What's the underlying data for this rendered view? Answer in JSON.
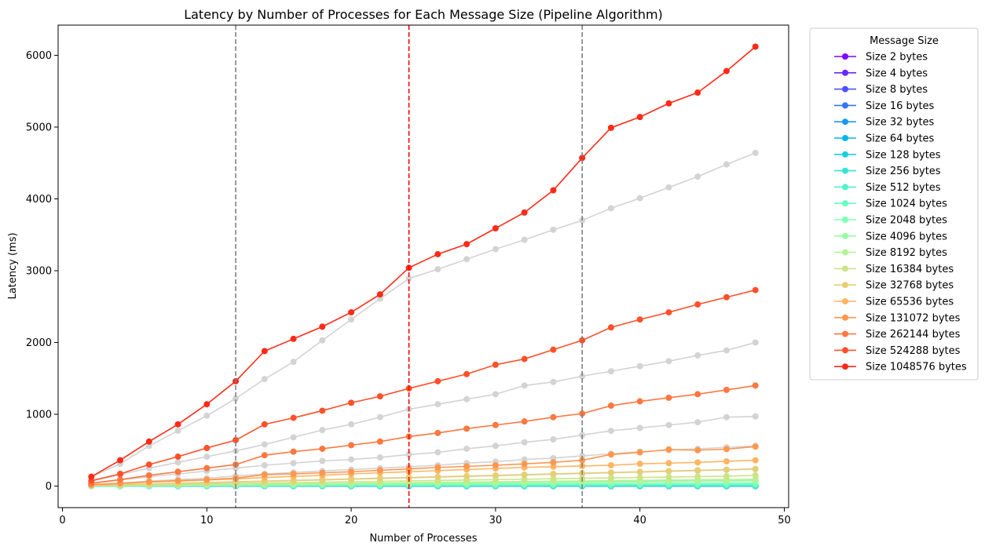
{
  "chart_data": {
    "type": "line",
    "title": "Latency by Number of Processes for Each Message Size (Pipeline Algorithm)",
    "xlabel": "Number of Processes",
    "ylabel": "Latency (ms)",
    "xlim": [
      -0.3,
      50.3
    ],
    "ylim": [
      -300,
      6420
    ],
    "xticks": [
      0,
      10,
      20,
      30,
      40,
      50
    ],
    "yticks": [
      0,
      1000,
      2000,
      3000,
      4000,
      5000,
      6000
    ],
    "grid": false,
    "x": [
      2,
      4,
      6,
      8,
      10,
      12,
      14,
      16,
      18,
      20,
      22,
      24,
      26,
      28,
      30,
      32,
      34,
      36,
      38,
      40,
      42,
      44,
      46,
      48
    ],
    "vlines": [
      {
        "x": 12,
        "color": "#808080"
      },
      {
        "x": 24,
        "color": "#ff0000"
      },
      {
        "x": 36,
        "color": "#808080"
      }
    ],
    "legend": {
      "title": "Message Size",
      "placement": "outside right"
    },
    "reference_color": "#d3d3d3",
    "reference_series": [
      {
        "values": [
          130,
          310,
          560,
          770,
          980,
          1220,
          1490,
          1730,
          2030,
          2320,
          2610,
          2890,
          3020,
          3160,
          3300,
          3430,
          3570,
          3700,
          3870,
          4010,
          4160,
          4310,
          4480,
          4640
        ]
      },
      {
        "values": [
          70,
          160,
          250,
          330,
          410,
          490,
          580,
          680,
          780,
          860,
          960,
          1070,
          1140,
          1210,
          1280,
          1400,
          1450,
          1530,
          1600,
          1670,
          1740,
          1820,
          1890,
          2000
        ]
      },
      {
        "values": [
          35,
          85,
          130,
          170,
          210,
          250,
          290,
          320,
          350,
          370,
          400,
          440,
          470,
          520,
          560,
          610,
          650,
          710,
          770,
          810,
          850,
          890,
          960,
          970
        ]
      },
      {
        "values": [
          15,
          40,
          70,
          90,
          110,
          140,
          170,
          190,
          210,
          230,
          250,
          270,
          290,
          320,
          340,
          370,
          390,
          420,
          450,
          480,
          500,
          520,
          540,
          560
        ]
      },
      {
        "values": [
          5,
          15,
          25,
          35,
          45,
          55,
          65,
          75,
          85,
          95,
          105,
          115,
          125,
          135,
          145,
          155,
          165,
          175,
          185,
          195,
          205,
          215,
          225,
          235
        ]
      },
      {
        "values": [
          0,
          5,
          8,
          12,
          15,
          18,
          22,
          25,
          28,
          32,
          35,
          38,
          42,
          45,
          48,
          52,
          55,
          58,
          62,
          65,
          68,
          72,
          75,
          78
        ]
      },
      {
        "values": [
          0,
          0,
          0,
          0,
          0,
          0,
          0,
          0,
          0,
          0,
          0,
          0,
          0,
          0,
          0,
          0,
          0,
          0,
          0,
          0,
          0,
          0,
          0,
          0
        ]
      }
    ],
    "series": [
      {
        "name": "Size 2 bytes",
        "color": "#8000ff",
        "values": [
          1,
          1,
          1,
          1,
          1,
          1,
          1,
          1,
          1,
          1,
          1,
          1,
          1,
          1,
          1,
          1,
          1,
          1,
          1,
          1,
          1,
          1,
          1,
          1
        ]
      },
      {
        "name": "Size 4 bytes",
        "color": "#6629fe",
        "values": [
          1,
          1,
          1,
          1,
          1,
          1,
          1,
          1,
          1,
          1,
          1,
          1,
          1,
          1,
          1,
          1,
          1,
          1,
          1,
          1,
          1,
          1,
          1,
          1
        ]
      },
      {
        "name": "Size 8 bytes",
        "color": "#4c50fc",
        "values": [
          1,
          1,
          1,
          1,
          1,
          1,
          1,
          1,
          1,
          1,
          1,
          1,
          1,
          1,
          1,
          1,
          1,
          1,
          1,
          1,
          1,
          1,
          1,
          1
        ]
      },
      {
        "name": "Size 16 bytes",
        "color": "#3176f8",
        "values": [
          1,
          1,
          1,
          1,
          1,
          1,
          1,
          1,
          1,
          1,
          1,
          1,
          1,
          1,
          1,
          1,
          1,
          1,
          1,
          1,
          1,
          1,
          1,
          1
        ]
      },
      {
        "name": "Size 32 bytes",
        "color": "#1996f3",
        "values": [
          1,
          1,
          1,
          1,
          1,
          1,
          1,
          1,
          1,
          1,
          1,
          1,
          1,
          1,
          1,
          1,
          1,
          1,
          1,
          1,
          1,
          1,
          1,
          1
        ]
      },
      {
        "name": "Size 64 bytes",
        "color": "#00b5eb",
        "values": [
          1,
          1,
          1,
          1,
          1,
          1,
          1,
          1,
          1,
          1,
          1,
          1,
          1,
          1,
          1,
          1,
          1,
          1,
          1,
          1,
          1,
          1,
          1,
          1
        ]
      },
      {
        "name": "Size 128 bytes",
        "color": "#1acee3",
        "values": [
          1,
          1,
          1,
          2,
          2,
          2,
          2,
          2,
          2,
          2,
          2,
          2,
          2,
          2,
          2,
          2,
          2,
          2,
          2,
          2,
          2,
          2,
          2,
          2
        ]
      },
      {
        "name": "Size 256 bytes",
        "color": "#33e4d6",
        "values": [
          1,
          1,
          2,
          2,
          2,
          3,
          3,
          3,
          3,
          4,
          4,
          4,
          4,
          4,
          5,
          5,
          5,
          5,
          5,
          6,
          6,
          6,
          6,
          6
        ]
      },
      {
        "name": "Size 512 bytes",
        "color": "#4df3ce",
        "values": [
          2,
          2,
          3,
          3,
          4,
          4,
          5,
          5,
          6,
          6,
          6,
          7,
          7,
          8,
          8,
          8,
          9,
          9,
          10,
          10,
          10,
          11,
          11,
          12
        ]
      },
      {
        "name": "Size 1024 bytes",
        "color": "#66fcc2",
        "values": [
          2,
          3,
          4,
          5,
          6,
          7,
          8,
          9,
          10,
          11,
          12,
          13,
          14,
          15,
          15,
          16,
          17,
          18,
          19,
          20,
          21,
          22,
          23,
          24
        ]
      },
      {
        "name": "Size 2048 bytes",
        "color": "#80ffb4",
        "values": [
          3,
          4,
          6,
          8,
          10,
          12,
          13,
          15,
          17,
          19,
          20,
          22,
          24,
          26,
          27,
          29,
          31,
          33,
          35,
          36,
          38,
          40,
          42,
          44
        ]
      },
      {
        "name": "Size 4096 bytes",
        "color": "#99fca4",
        "values": [
          3,
          6,
          9,
          12,
          15,
          18,
          21,
          24,
          27,
          30,
          33,
          36,
          39,
          42,
          45,
          48,
          51,
          54,
          57,
          60,
          63,
          66,
          69,
          72
        ]
      },
      {
        "name": "Size 8192 bytes",
        "color": "#b3f396",
        "values": [
          4,
          8,
          12,
          16,
          20,
          24,
          28,
          32,
          36,
          40,
          44,
          48,
          52,
          56,
          60,
          64,
          68,
          72,
          76,
          80,
          84,
          88,
          92,
          96
        ]
      },
      {
        "name": "Size 16384 bytes",
        "color": "#cce485",
        "values": [
          6,
          12,
          18,
          24,
          30,
          36,
          42,
          48,
          54,
          60,
          66,
          72,
          78,
          84,
          90,
          96,
          102,
          108,
          114,
          120,
          126,
          132,
          138,
          150
        ]
      },
      {
        "name": "Size 32768 bytes",
        "color": "#e6ce73",
        "values": [
          10,
          20,
          30,
          40,
          50,
          60,
          70,
          80,
          90,
          100,
          110,
          120,
          130,
          140,
          150,
          160,
          170,
          180,
          190,
          200,
          210,
          220,
          230,
          240
        ]
      },
      {
        "name": "Size 65536 bytes",
        "color": "#ffb462",
        "values": [
          15,
          35,
          55,
          70,
          85,
          100,
          120,
          135,
          150,
          170,
          185,
          200,
          215,
          230,
          245,
          260,
          270,
          280,
          290,
          310,
          320,
          330,
          345,
          360
        ]
      },
      {
        "name": "Size 131072 bytes",
        "color": "#ff964f",
        "values": [
          20,
          40,
          60,
          75,
          90,
          110,
          160,
          170,
          185,
          200,
          220,
          240,
          260,
          275,
          290,
          310,
          330,
          360,
          440,
          470,
          510,
          500,
          515,
          550
        ]
      },
      {
        "name": "Size 262144 bytes",
        "color": "#ff7640",
        "values": [
          40,
          90,
          150,
          200,
          250,
          300,
          430,
          480,
          520,
          570,
          620,
          690,
          740,
          800,
          850,
          900,
          960,
          1010,
          1120,
          1180,
          1230,
          1280,
          1340,
          1400
        ]
      },
      {
        "name": "Size 524288 bytes",
        "color": "#ff502a",
        "values": [
          75,
          170,
          300,
          410,
          530,
          640,
          860,
          950,
          1050,
          1160,
          1250,
          1360,
          1460,
          1560,
          1690,
          1770,
          1900,
          2030,
          2210,
          2320,
          2420,
          2530,
          2630,
          2730
        ]
      },
      {
        "name": "Size 1048576 bytes",
        "color": "#ff2a17",
        "values": [
          130,
          360,
          620,
          860,
          1140,
          1460,
          1880,
          2050,
          2220,
          2420,
          2670,
          3040,
          3230,
          3370,
          3590,
          3810,
          4120,
          4570,
          4990,
          5140,
          5330,
          5480,
          5780,
          6120
        ]
      }
    ]
  }
}
